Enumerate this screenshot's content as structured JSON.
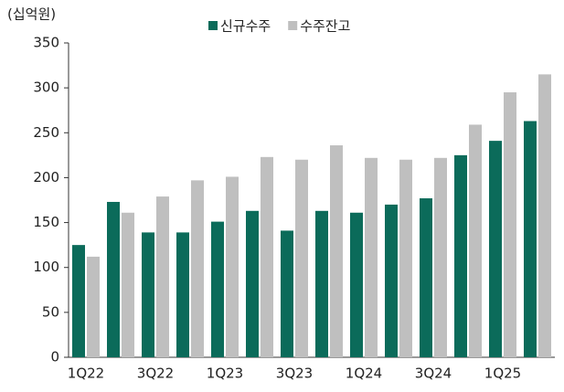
{
  "chart_data": {
    "type": "bar",
    "y_label": "(십억원)",
    "categories": [
      "1Q22",
      null,
      "3Q22",
      null,
      "1Q23",
      null,
      "3Q23",
      null,
      "1Q24",
      null,
      "3Q24",
      null,
      "1Q25",
      null
    ],
    "series": [
      {
        "name": "신규수주",
        "color": "#0b6b5a",
        "values": [
          125,
          173,
          139,
          139,
          151,
          163,
          141,
          163,
          161,
          170,
          177,
          225,
          241,
          263
        ]
      },
      {
        "name": "수주잔고",
        "color": "#bfbfbf",
        "values": [
          112,
          161,
          179,
          197,
          201,
          223,
          220,
          236,
          222,
          220,
          222,
          259,
          295,
          315
        ]
      }
    ],
    "ylim": [
      0,
      350
    ],
    "yticks": [
      0,
      50,
      100,
      150,
      200,
      250,
      300,
      350
    ],
    "grid": false,
    "legend": "top"
  }
}
